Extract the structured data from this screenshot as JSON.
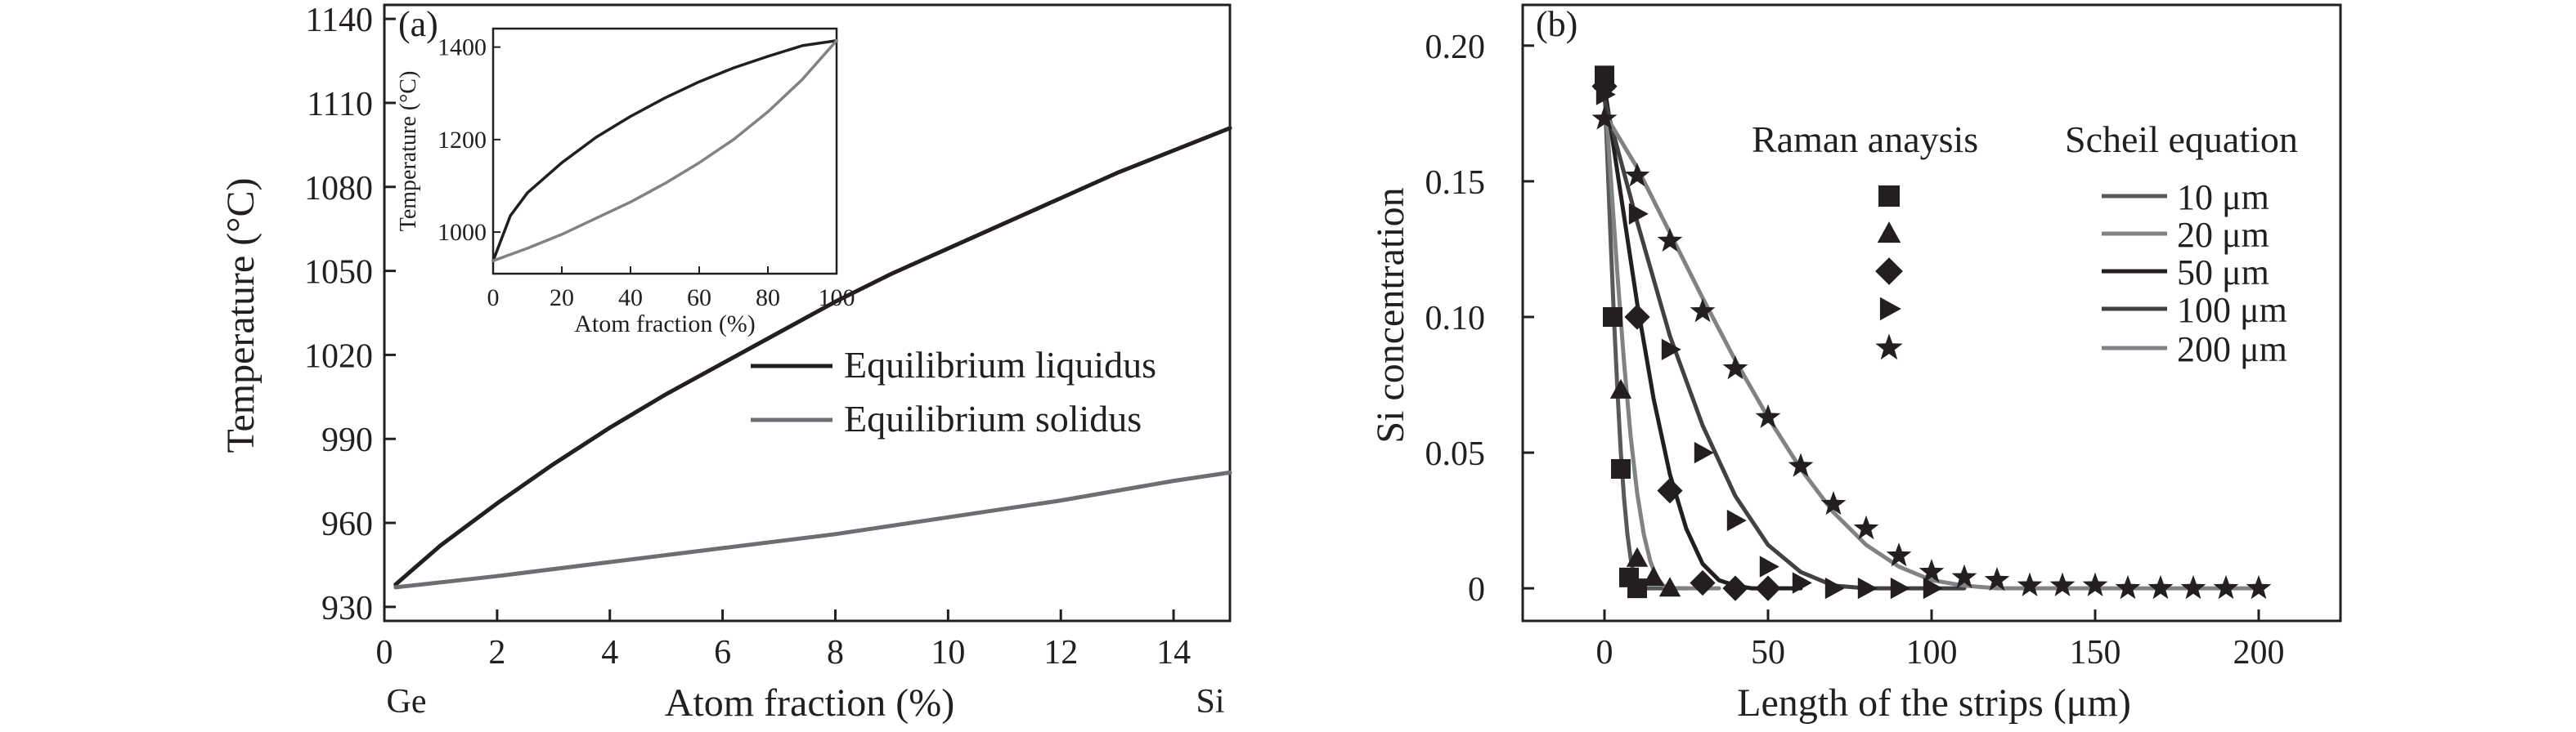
{
  "colors": {
    "ink": "#231f20",
    "grey": "#6d6e71",
    "mid": "#4d4d4f",
    "panel_b_lines": [
      "#58595b",
      "#808285",
      "#231f20",
      "#414042",
      "#808285"
    ]
  },
  "chart_data": [
    {
      "panel_label": "(a)",
      "type": "line",
      "xlabel": "Atom fraction (%)",
      "ylabel": "Temperature (°C)",
      "xlim": [
        0,
        15
      ],
      "ylim": [
        925,
        1145
      ],
      "xticks": [
        0,
        2,
        4,
        6,
        8,
        10,
        12,
        14
      ],
      "yticks": [
        930,
        960,
        990,
        1020,
        1050,
        1080,
        1110,
        1140
      ],
      "x_end_labels": {
        "left": "Ge",
        "right": "Si"
      },
      "legend_position": "center-right",
      "grid": false,
      "series": [
        {
          "name": "Equilibrium liquidus",
          "color": "#231f20",
          "x": [
            0.2,
            1,
            2,
            3,
            4,
            5,
            6,
            7,
            8,
            9,
            10,
            11,
            12,
            13,
            14,
            15
          ],
          "y": [
            938,
            952,
            967,
            981,
            994,
            1006,
            1017,
            1028,
            1039,
            1049,
            1058,
            1067,
            1076,
            1085,
            1093,
            1101
          ]
        },
        {
          "name": "Equilibrium solidus",
          "color": "#6d6e71",
          "x": [
            0.2,
            2,
            4,
            6,
            8,
            10,
            12,
            14,
            15
          ],
          "y": [
            937,
            941,
            946,
            951,
            956,
            962,
            968,
            975,
            978
          ]
        }
      ],
      "inset": {
        "type": "line",
        "xlabel": "Atom fraction (%)",
        "ylabel": "Temperature (°C)",
        "xlim": [
          0,
          100
        ],
        "ylim": [
          910,
          1440
        ],
        "xticks": [
          0,
          20,
          40,
          60,
          80,
          100
        ],
        "yticks": [
          1000,
          1200,
          1400
        ],
        "series": [
          {
            "name": "liquidus",
            "color": "#231f20",
            "x": [
              0,
              5,
              10,
              20,
              30,
              40,
              50,
              60,
              70,
              80,
              90,
              100
            ],
            "y": [
              938,
              1035,
              1085,
              1150,
              1205,
              1250,
              1290,
              1325,
              1355,
              1380,
              1403,
              1414
            ]
          },
          {
            "name": "solidus",
            "color": "#808285",
            "x": [
              0,
              10,
              20,
              30,
              40,
              50,
              60,
              70,
              80,
              90,
              100
            ],
            "y": [
              938,
              965,
              995,
              1030,
              1065,
              1105,
              1150,
              1200,
              1260,
              1330,
              1414
            ]
          }
        ]
      }
    },
    {
      "panel_label": "(b)",
      "type": "line+scatter",
      "xlabel": "Length of the strips (μm)",
      "ylabel": "Si concentration",
      "xlim": [
        -25,
        225
      ],
      "ylim": [
        -0.012,
        0.215
      ],
      "xticks": [
        0,
        50,
        100,
        150,
        200
      ],
      "yticks": [
        0,
        0.05,
        0.1,
        0.15,
        0.2
      ],
      "ytick_labels": [
        "0",
        "0.05",
        "0.10",
        "0.15",
        "0.20"
      ],
      "legend_position": "top-right",
      "legend_headers": {
        "markers": "Raman anaysis",
        "lines": "Scheil equation"
      },
      "grid": false,
      "series": [
        {
          "name": "10 μm",
          "marker": "square",
          "marker_x": [
            0,
            2.5,
            5,
            7.5,
            10
          ],
          "marker_y": [
            0.189,
            0.1,
            0.044,
            0.004,
            0
          ],
          "line_x": [
            0,
            1,
            2,
            3,
            4,
            5,
            6,
            7,
            8,
            9,
            10,
            12,
            15,
            25
          ],
          "line_y": [
            0.185,
            0.155,
            0.125,
            0.097,
            0.072,
            0.05,
            0.033,
            0.02,
            0.011,
            0.005,
            0.002,
            0,
            0,
            0
          ]
        },
        {
          "name": "20 μm",
          "marker": "triangle-up",
          "marker_x": [
            0,
            5,
            10,
            15,
            20
          ],
          "marker_y": [
            0.187,
            0.073,
            0.011,
            0.004,
            0
          ],
          "line_x": [
            0,
            2,
            4,
            6,
            8,
            10,
            12,
            14,
            16,
            18,
            20,
            25,
            35
          ],
          "line_y": [
            0.185,
            0.15,
            0.115,
            0.083,
            0.056,
            0.035,
            0.02,
            0.01,
            0.004,
            0.001,
            0,
            0,
            0
          ]
        },
        {
          "name": "50 μm",
          "marker": "diamond",
          "marker_x": [
            0,
            10,
            20,
            30,
            40,
            50
          ],
          "marker_y": [
            0.185,
            0.1,
            0.036,
            0.002,
            0,
            0
          ],
          "line_x": [
            0,
            5,
            10,
            15,
            20,
            25,
            30,
            35,
            40,
            45,
            50,
            60
          ],
          "line_y": [
            0.185,
            0.145,
            0.105,
            0.07,
            0.042,
            0.022,
            0.009,
            0.003,
            0.001,
            0,
            0,
            0
          ]
        },
        {
          "name": "100 μm",
          "marker": "triangle-right",
          "marker_x": [
            0,
            10,
            20,
            30,
            40,
            50,
            60,
            70,
            80,
            90,
            100
          ],
          "marker_y": [
            0.182,
            0.138,
            0.088,
            0.05,
            0.025,
            0.008,
            0.002,
            0,
            0,
            0,
            0
          ],
          "line_x": [
            0,
            10,
            20,
            30,
            40,
            50,
            60,
            70,
            80,
            90,
            100,
            110
          ],
          "line_y": [
            0.18,
            0.135,
            0.093,
            0.06,
            0.034,
            0.016,
            0.006,
            0.001,
            0,
            0,
            0,
            0
          ]
        },
        {
          "name": "200 μm",
          "marker": "star",
          "marker_x": [
            0,
            10,
            20,
            30,
            40,
            50,
            60,
            70,
            80,
            90,
            100,
            110,
            120,
            130,
            140,
            150,
            160,
            170,
            180,
            190,
            200
          ],
          "marker_y": [
            0.173,
            0.152,
            0.128,
            0.102,
            0.081,
            0.063,
            0.045,
            0.031,
            0.022,
            0.012,
            0.006,
            0.004,
            0.003,
            0.001,
            0.001,
            0.001,
            0,
            0,
            0,
            0,
            0
          ],
          "line_x": [
            0,
            10,
            20,
            30,
            40,
            50,
            60,
            70,
            80,
            90,
            100,
            110,
            120,
            140,
            160,
            180,
            200
          ],
          "line_y": [
            0.175,
            0.155,
            0.131,
            0.107,
            0.084,
            0.063,
            0.044,
            0.028,
            0.016,
            0.008,
            0.003,
            0.001,
            0,
            0,
            0,
            0,
            0
          ]
        }
      ]
    }
  ]
}
